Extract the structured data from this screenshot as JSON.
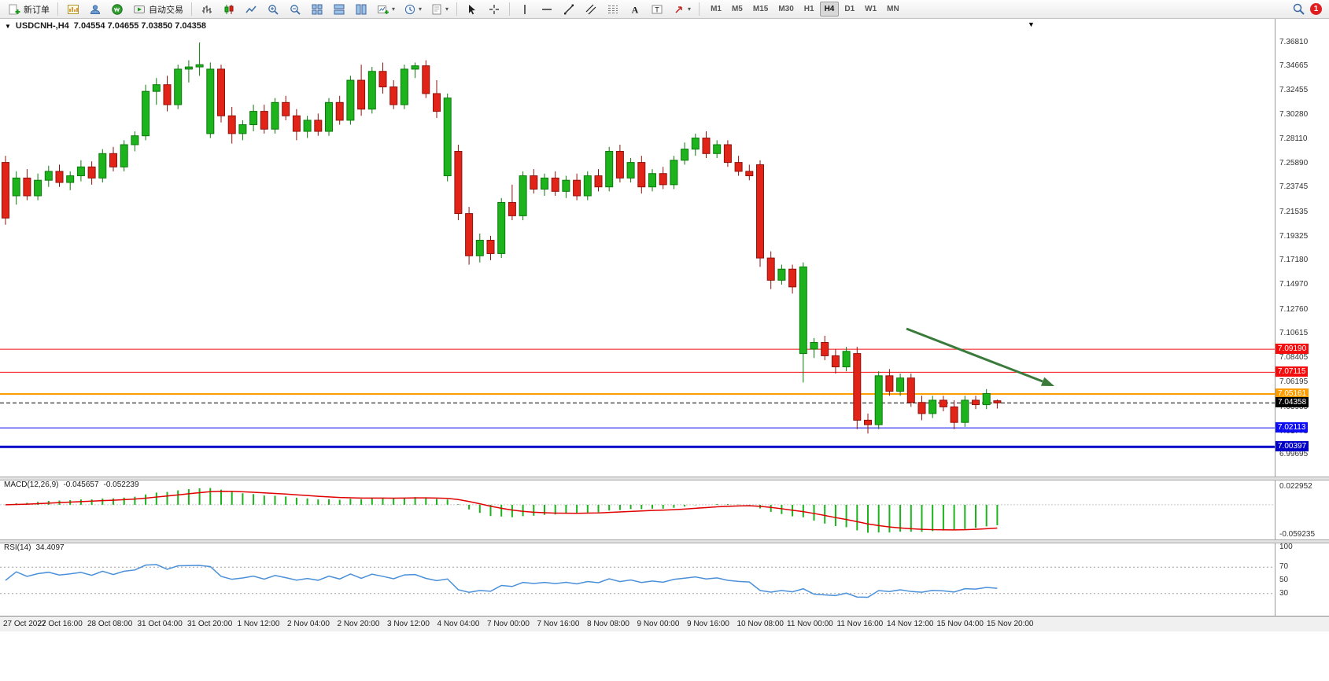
{
  "toolbar": {
    "new_order_label": "新订单",
    "autotrading_label": "自动交易",
    "timeframes": [
      "M1",
      "M5",
      "M15",
      "M30",
      "H1",
      "H4",
      "D1",
      "W1",
      "MN"
    ],
    "active_timeframe": "H4",
    "notification_count": "1"
  },
  "chart_header": {
    "symbol_period": "USDCNH-,H4",
    "ohlc": "7.04554 7.04655 7.03850 7.04358"
  },
  "indicators": {
    "macd": {
      "name": "MACD(12,26,9)",
      "value_main": "-0.045657",
      "value_signal": "-0.052239",
      "scale_top": "0.022952",
      "scale_bottom": "-0.059235"
    },
    "rsi": {
      "name": "RSI(14)",
      "value": "34.4097"
    }
  },
  "chart_data": {
    "type": "candlestick",
    "symbol": "USDCNH-",
    "timeframe": "H4",
    "title": "USDCNH-,H4 7.04554 7.04655 7.03850 7.04358",
    "price_axis_ticks": [
      "7.36810",
      "7.34665",
      "7.32455",
      "7.30280",
      "7.28110",
      "7.25890",
      "7.23745",
      "7.21535",
      "7.19325",
      "7.17180",
      "7.14970",
      "7.12760",
      "7.10615",
      "7.08405",
      "7.06195",
      "7.03985",
      "7.01775",
      "6.99695"
    ],
    "hlines": [
      {
        "price": 7.0919,
        "label": "7.09190",
        "color": "#f50d0d",
        "width": 1,
        "dash": false
      },
      {
        "price": 7.07115,
        "label": "7.07115",
        "color": "#f50d0d",
        "width": 1,
        "dash": false
      },
      {
        "price": 7.05161,
        "label": "7.05161",
        "color": "#ff9d00",
        "width": 2,
        "dash": false
      },
      {
        "price": 7.04358,
        "label": "7.04358",
        "color": "#000000",
        "width": 1,
        "dash": true
      },
      {
        "price": 7.02113,
        "label": "7.02113",
        "color": "#0d0df5",
        "width": 1,
        "dash": false
      },
      {
        "price": 7.00397,
        "label": "7.00397",
        "color": "#0000c8",
        "width": 3,
        "dash": false
      }
    ],
    "time_axis": [
      "27 Oct 2022",
      "27 Oct 16:00",
      "28 Oct 08:00",
      "31 Oct 04:00",
      "31 Oct 20:00",
      "1 Nov 12:00",
      "2 Nov 04:00",
      "2 Nov 20:00",
      "3 Nov 12:00",
      "4 Nov 04:00",
      "7 Nov 00:00",
      "7 Nov 16:00",
      "8 Nov 08:00",
      "9 Nov 00:00",
      "9 Nov 16:00",
      "10 Nov 08:00",
      "11 Nov 00:00",
      "11 Nov 16:00",
      "14 Nov 12:00",
      "15 Nov 04:00",
      "15 Nov 20:00"
    ],
    "macd_params": [
      12,
      26,
      9
    ],
    "rsi_period": 14,
    "rsi_levels": [
      70,
      30
    ],
    "rsi_scale_labels": [
      "100",
      "70",
      "50",
      "30"
    ],
    "colors": {
      "up": "#1db31d",
      "up_border": "#0c7a0c",
      "down": "#e22418",
      "down_border": "#8f120c",
      "macd_hist": "#1db31d",
      "macd_signal": "#e00000",
      "rsi_line": "#4a90d9",
      "arrow": "#3a7a3a"
    },
    "candles": [
      [
        7.26,
        7.266,
        7.204,
        7.21
      ],
      [
        7.23,
        7.252,
        7.222,
        7.246
      ],
      [
        7.246,
        7.254,
        7.226,
        7.23
      ],
      [
        7.23,
        7.25,
        7.226,
        7.244
      ],
      [
        7.244,
        7.257,
        7.238,
        7.252
      ],
      [
        7.252,
        7.258,
        7.238,
        7.242
      ],
      [
        7.242,
        7.252,
        7.235,
        7.248
      ],
      [
        7.248,
        7.262,
        7.243,
        7.256
      ],
      [
        7.256,
        7.261,
        7.24,
        7.246
      ],
      [
        7.246,
        7.272,
        7.242,
        7.268
      ],
      [
        7.268,
        7.274,
        7.252,
        7.256
      ],
      [
        7.256,
        7.28,
        7.252,
        7.276
      ],
      [
        7.276,
        7.288,
        7.27,
        7.284
      ],
      [
        7.284,
        7.33,
        7.28,
        7.324
      ],
      [
        7.324,
        7.336,
        7.312,
        7.33
      ],
      [
        7.33,
        7.338,
        7.306,
        7.312
      ],
      [
        7.312,
        7.348,
        7.308,
        7.344
      ],
      [
        7.344,
        7.352,
        7.332,
        7.346
      ],
      [
        7.346,
        7.368,
        7.338,
        7.348
      ],
      [
        7.286,
        7.35,
        7.282,
        7.344
      ],
      [
        7.344,
        7.348,
        7.296,
        7.302
      ],
      [
        7.302,
        7.31,
        7.277,
        7.286
      ],
      [
        7.286,
        7.298,
        7.28,
        7.294
      ],
      [
        7.294,
        7.312,
        7.288,
        7.306
      ],
      [
        7.306,
        7.312,
        7.286,
        7.29
      ],
      [
        7.29,
        7.318,
        7.286,
        7.314
      ],
      [
        7.314,
        7.32,
        7.298,
        7.302
      ],
      [
        7.302,
        7.308,
        7.28,
        7.288
      ],
      [
        7.288,
        7.302,
        7.282,
        7.298
      ],
      [
        7.298,
        7.304,
        7.284,
        7.288
      ],
      [
        7.288,
        7.318,
        7.284,
        7.314
      ],
      [
        7.314,
        7.32,
        7.294,
        7.298
      ],
      [
        7.298,
        7.338,
        7.294,
        7.334
      ],
      [
        7.334,
        7.348,
        7.302,
        7.308
      ],
      [
        7.308,
        7.346,
        7.304,
        7.342
      ],
      [
        7.342,
        7.35,
        7.322,
        7.328
      ],
      [
        7.328,
        7.334,
        7.308,
        7.312
      ],
      [
        7.312,
        7.348,
        7.308,
        7.344
      ],
      [
        7.344,
        7.35,
        7.336,
        7.347
      ],
      [
        7.347,
        7.352,
        7.318,
        7.322
      ],
      [
        7.322,
        7.334,
        7.3,
        7.306
      ],
      [
        7.248,
        7.322,
        7.243,
        7.318
      ],
      [
        7.27,
        7.276,
        7.208,
        7.214
      ],
      [
        7.214,
        7.22,
        7.168,
        7.176
      ],
      [
        7.176,
        7.196,
        7.17,
        7.19
      ],
      [
        7.19,
        7.194,
        7.172,
        7.178
      ],
      [
        7.178,
        7.228,
        7.174,
        7.224
      ],
      [
        7.224,
        7.24,
        7.208,
        7.212
      ],
      [
        7.212,
        7.252,
        7.208,
        7.248
      ],
      [
        7.248,
        7.254,
        7.232,
        7.236
      ],
      [
        7.236,
        7.25,
        7.23,
        7.246
      ],
      [
        7.246,
        7.252,
        7.23,
        7.234
      ],
      [
        7.234,
        7.248,
        7.228,
        7.244
      ],
      [
        7.244,
        7.25,
        7.226,
        7.23
      ],
      [
        7.23,
        7.252,
        7.226,
        7.248
      ],
      [
        7.248,
        7.254,
        7.234,
        7.238
      ],
      [
        7.238,
        7.274,
        7.234,
        7.27
      ],
      [
        7.27,
        7.276,
        7.242,
        7.246
      ],
      [
        7.246,
        7.264,
        7.242,
        7.26
      ],
      [
        7.26,
        7.266,
        7.232,
        7.238
      ],
      [
        7.238,
        7.254,
        7.234,
        7.25
      ],
      [
        7.25,
        7.256,
        7.236,
        7.24
      ],
      [
        7.24,
        7.266,
        7.236,
        7.262
      ],
      [
        7.262,
        7.278,
        7.258,
        7.272
      ],
      [
        7.272,
        7.286,
        7.266,
        7.282
      ],
      [
        7.282,
        7.288,
        7.264,
        7.268
      ],
      [
        7.268,
        7.28,
        7.264,
        7.276
      ],
      [
        7.276,
        7.28,
        7.256,
        7.26
      ],
      [
        7.26,
        7.266,
        7.248,
        7.252
      ],
      [
        7.252,
        7.258,
        7.244,
        7.248
      ],
      [
        7.258,
        7.262,
        7.166,
        7.174
      ],
      [
        7.174,
        7.18,
        7.146,
        7.154
      ],
      [
        7.154,
        7.168,
        7.15,
        7.164
      ],
      [
        7.164,
        7.168,
        7.142,
        7.148
      ],
      [
        7.088,
        7.17,
        7.062,
        7.166
      ],
      [
        7.092,
        7.102,
        7.084,
        7.098
      ],
      [
        7.098,
        7.104,
        7.082,
        7.086
      ],
      [
        7.086,
        7.092,
        7.07,
        7.076
      ],
      [
        7.076,
        7.094,
        7.072,
        7.09
      ],
      [
        7.088,
        7.094,
        7.02,
        7.028
      ],
      [
        7.028,
        7.034,
        7.016,
        7.024
      ],
      [
        7.024,
        7.072,
        7.02,
        7.068
      ],
      [
        7.068,
        7.074,
        7.05,
        7.054
      ],
      [
        7.054,
        7.07,
        7.05,
        7.066
      ],
      [
        7.066,
        7.07,
        7.04,
        7.044
      ],
      [
        7.044,
        7.05,
        7.028,
        7.034
      ],
      [
        7.034,
        7.05,
        7.03,
        7.046
      ],
      [
        7.046,
        7.05,
        7.036,
        7.04
      ],
      [
        7.04,
        7.046,
        7.02,
        7.026
      ],
      [
        7.026,
        7.05,
        7.022,
        7.046
      ],
      [
        7.046,
        7.05,
        7.038,
        7.042
      ],
      [
        7.042,
        7.056,
        7.038,
        7.052
      ],
      [
        7.0455,
        7.0466,
        7.0385,
        7.0436
      ]
    ]
  }
}
